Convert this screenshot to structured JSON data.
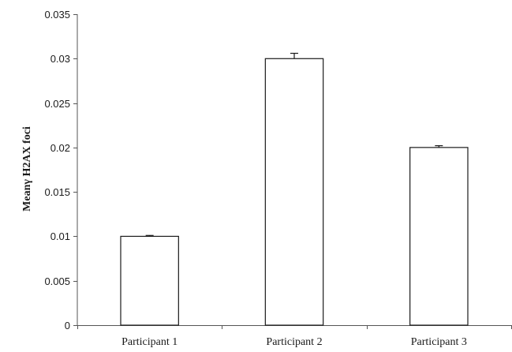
{
  "chart_data": {
    "type": "bar",
    "title": "",
    "xlabel": "",
    "ylabel": "Meanγ H2AX foci",
    "categories": [
      "Participant 1",
      "Participant 2",
      "Participant 3"
    ],
    "values": [
      0.01,
      0.03,
      0.02
    ],
    "error": [
      0.0001,
      0.0006,
      0.0002
    ],
    "ylim": [
      0,
      0.035
    ],
    "yticks": [
      0,
      0.005,
      0.01,
      0.015,
      0.02,
      0.025,
      0.03,
      0.035
    ],
    "ytick_labels": [
      "0",
      "0.005",
      "0.01",
      "0.015",
      "0.02",
      "0.025",
      "0.03",
      "0.035"
    ],
    "grid": false,
    "legend": "none",
    "colors": {
      "bar_fill": "#ffffff",
      "bar_stroke": "#1a1a1a",
      "axis": "#555555"
    }
  }
}
